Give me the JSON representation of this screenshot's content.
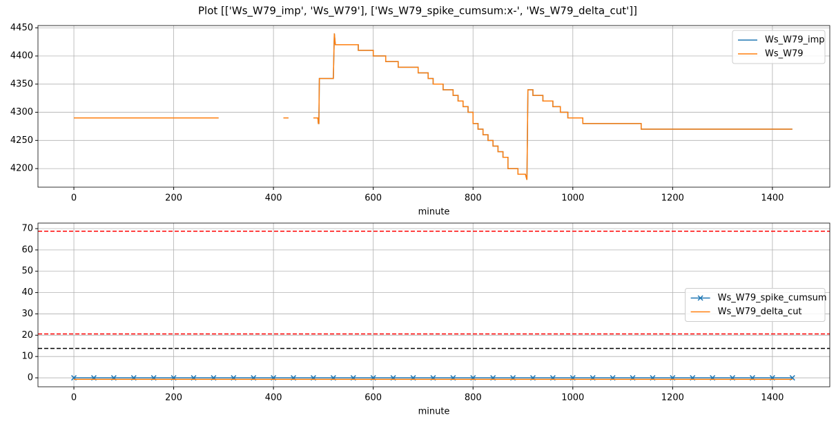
{
  "title": "Plot [['Ws_W79_imp', 'Ws_W79'], ['Ws_W79_spike_cumsum:x-', 'Ws_W79_delta_cut']]",
  "chart_data": [
    {
      "type": "line",
      "xlabel": "minute",
      "x": [
        0,
        290,
        355,
        420,
        430,
        455,
        480,
        489,
        490,
        491,
        492,
        520,
        522,
        522,
        524,
        570,
        570,
        600,
        600,
        625,
        625,
        650,
        650,
        690,
        690,
        710,
        710,
        720,
        720,
        740,
        740,
        760,
        760,
        770,
        770,
        780,
        780,
        790,
        790,
        800,
        800,
        810,
        810,
        820,
        820,
        830,
        830,
        840,
        840,
        850,
        850,
        860,
        860,
        870,
        870,
        890,
        890,
        905,
        908,
        908,
        910,
        920,
        920,
        940,
        940,
        960,
        960,
        975,
        975,
        990,
        990,
        1020,
        1020,
        1137,
        1137,
        1440
      ],
      "series": [
        {
          "name": "Ws_W79_imp",
          "color": "#1f77b4",
          "values": [
            4290,
            4290,
            null,
            4290,
            4290,
            null,
            4290,
            4290,
            4280,
            4280,
            4360,
            4360,
            4440,
            4440,
            4420,
            4420,
            4410,
            4410,
            4400,
            4400,
            4390,
            4390,
            4380,
            4380,
            4370,
            4370,
            4360,
            4360,
            4350,
            4350,
            4340,
            4340,
            4330,
            4330,
            4320,
            4320,
            4310,
            4310,
            4300,
            4300,
            4280,
            4280,
            4270,
            4270,
            4260,
            4260,
            4250,
            4250,
            4240,
            4240,
            4230,
            4230,
            4220,
            4220,
            4200,
            4200,
            4190,
            4190,
            4180,
            4180,
            4340,
            4340,
            4330,
            4330,
            4320,
            4320,
            4310,
            4310,
            4300,
            4300,
            4290,
            4290,
            4280,
            4280,
            4270,
            4270
          ]
        },
        {
          "name": "Ws_W79",
          "color": "#ff7f0e",
          "values": [
            4290,
            4290,
            null,
            4290,
            4290,
            null,
            4290,
            4290,
            4280,
            4280,
            4360,
            4360,
            4440,
            4440,
            4420,
            4420,
            4410,
            4410,
            4400,
            4400,
            4390,
            4390,
            4380,
            4380,
            4370,
            4370,
            4360,
            4360,
            4350,
            4350,
            4340,
            4340,
            4330,
            4330,
            4320,
            4320,
            4310,
            4310,
            4300,
            4300,
            4280,
            4280,
            4270,
            4270,
            4260,
            4260,
            4250,
            4250,
            4240,
            4240,
            4230,
            4230,
            4220,
            4220,
            4200,
            4200,
            4190,
            4190,
            4180,
            4180,
            4340,
            4340,
            4330,
            4330,
            4320,
            4320,
            4310,
            4310,
            4300,
            4300,
            4290,
            4290,
            4280,
            4280,
            4270,
            4270
          ]
        }
      ],
      "xlim": [
        -72,
        1515
      ],
      "xticks": [
        0,
        200,
        400,
        600,
        800,
        1000,
        1200,
        1400
      ],
      "ylim": [
        4167,
        4454
      ],
      "yticks": [
        4200,
        4250,
        4300,
        4350,
        4400,
        4450
      ],
      "grid": true,
      "legend": "upper right"
    },
    {
      "type": "line",
      "xlabel": "minute",
      "x": [
        0,
        40,
        80,
        120,
        160,
        200,
        240,
        280,
        320,
        360,
        400,
        440,
        480,
        520,
        560,
        600,
        640,
        680,
        720,
        760,
        800,
        840,
        880,
        920,
        960,
        1000,
        1040,
        1080,
        1120,
        1160,
        1200,
        1240,
        1280,
        1320,
        1360,
        1400,
        1440
      ],
      "series": [
        {
          "name": "Ws_W79_spike_cumsum",
          "color": "#1f77b4",
          "marker": "x",
          "values": [
            0,
            0,
            0,
            0,
            0,
            0,
            0,
            0,
            0,
            0,
            0,
            0,
            0,
            0,
            0,
            0,
            0,
            0,
            0,
            0,
            0,
            0,
            0,
            0,
            0,
            0,
            0,
            0,
            0,
            0,
            0,
            0,
            0,
            0,
            0,
            0,
            0
          ]
        },
        {
          "name": "Ws_W79_delta_cut",
          "color": "#ff7f0e",
          "values": [
            -0.7,
            -0.7,
            -0.7,
            -0.7,
            -0.7,
            -0.7,
            -0.7,
            -0.7,
            -0.7,
            -0.7,
            -0.7,
            -0.7,
            -0.7,
            -0.7,
            -0.7,
            -0.7,
            -0.7,
            -0.7,
            -0.7,
            -0.7,
            -0.7,
            -0.7,
            -0.7,
            -0.7,
            -0.7,
            -0.7,
            -0.7,
            -0.7,
            -0.7,
            -0.7,
            -0.7,
            -0.7,
            -0.7,
            -0.7,
            -0.7,
            -0.7,
            -0.7
          ]
        }
      ],
      "hlines": [
        {
          "y": 68.8,
          "color": "#ff0000"
        },
        {
          "y": 20.6,
          "color": "#ff0000"
        },
        {
          "y": 13.8,
          "color": "#000000"
        }
      ],
      "xlim": [
        -72,
        1515
      ],
      "xticks": [
        0,
        200,
        400,
        600,
        800,
        1000,
        1200,
        1400
      ],
      "ylim": [
        -4.2,
        72.6
      ],
      "yticks": [
        0,
        10,
        20,
        30,
        40,
        50,
        60,
        70
      ],
      "grid": true,
      "legend": "center right"
    }
  ]
}
